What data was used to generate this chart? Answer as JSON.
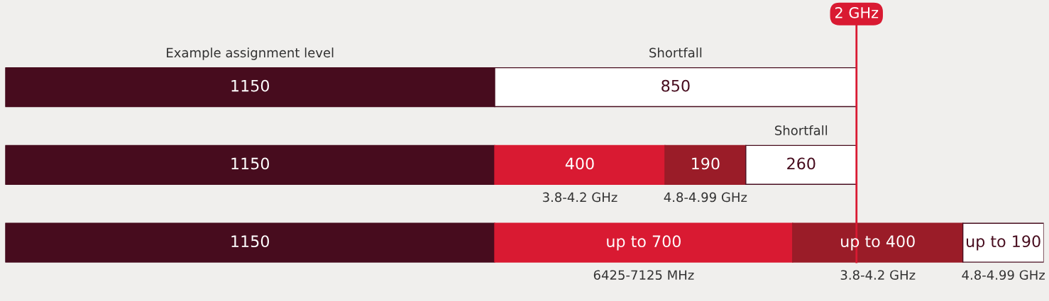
{
  "chart_data": {
    "type": "bar",
    "orientation": "horizontal",
    "stacked": true,
    "categories": [
      null,
      null,
      null
    ],
    "series": [
      {
        "color": "#470c1e",
        "colors": [
          "#470c1e",
          "#470c1e",
          "#470c1e"
        ],
        "values": [
          1150,
          1150,
          1150
        ],
        "value_labels": [
          "1150",
          "1150",
          "1150"
        ]
      },
      {
        "colors": [
          "#ffffff",
          "#d91a32",
          "#d91a32"
        ],
        "values": [
          850,
          400,
          700
        ],
        "value_labels": [
          "850",
          "400",
          "up to 700"
        ]
      },
      {
        "colors": [
          "#9a1c28",
          "#9a1c28",
          "#9a1c28"
        ],
        "values": [
          null,
          190,
          400
        ],
        "value_labels": [
          null,
          "190",
          "up to 400"
        ]
      },
      {
        "colors": [
          "#ffffff",
          "#ffffff",
          "#ffffff"
        ],
        "values": [
          null,
          260,
          190
        ],
        "value_labels": [
          null,
          "260",
          "up to 190"
        ]
      }
    ],
    "xlim": [
      0,
      2440
    ],
    "legend": false,
    "ref_lines": [
      {
        "axis": "x",
        "value": 2000,
        "label": "2 GHz",
        "color": "#d91a32"
      }
    ],
    "annotations": [
      "Example assignment level",
      "Shortfall",
      "Shortfall",
      "3.8-4.2 GHz",
      "4.8-4.99 GHz",
      "6425-7125 MHz",
      "3.8-4.2 GHz",
      "4.8-4.99 GHz"
    ]
  }
}
